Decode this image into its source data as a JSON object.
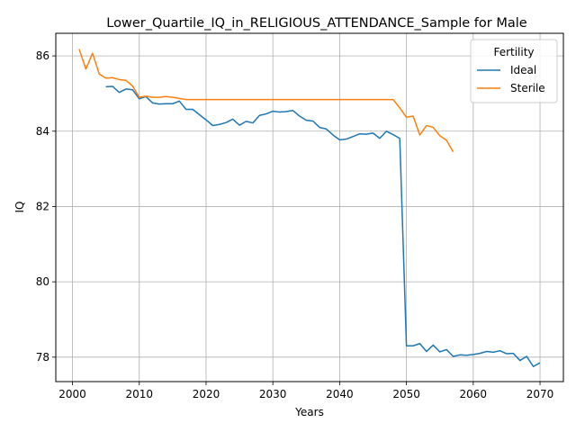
{
  "chart_data": {
    "type": "line",
    "title": "Lower_Quartile_IQ_in_RELIGIOUS_ATTENDANCE_Sample for Male",
    "xlabel": "Years",
    "ylabel": "IQ",
    "xlim": [
      1997.5,
      2073.5
    ],
    "ylim": [
      77.35,
      86.6
    ],
    "xticks": [
      2000,
      2010,
      2020,
      2030,
      2040,
      2050,
      2060,
      2070
    ],
    "yticks": [
      78,
      80,
      82,
      84,
      86
    ],
    "grid": true,
    "legend": {
      "title": "Fertility",
      "placement": "top-right"
    },
    "series": [
      {
        "name": "Ideal",
        "color": "#1f77b4",
        "x": [
          2005,
          2006,
          2007,
          2008,
          2009,
          2010,
          2011,
          2012,
          2013,
          2014,
          2015,
          2016,
          2017,
          2018,
          2019,
          2020,
          2021,
          2022,
          2023,
          2024,
          2025,
          2026,
          2027,
          2028,
          2029,
          2030,
          2031,
          2032,
          2033,
          2034,
          2035,
          2036,
          2037,
          2038,
          2039,
          2040,
          2041,
          2042,
          2043,
          2044,
          2045,
          2046,
          2047,
          2048,
          2049,
          2050,
          2051,
          2052,
          2053,
          2054,
          2055,
          2056,
          2057,
          2058,
          2059,
          2060,
          2061,
          2062,
          2063,
          2064,
          2065,
          2066,
          2067,
          2068,
          2069,
          2070
        ],
        "values": [
          85.18,
          85.19,
          85.03,
          85.12,
          85.1,
          84.86,
          84.92,
          84.75,
          84.72,
          84.73,
          84.73,
          84.8,
          84.58,
          84.58,
          84.44,
          84.3,
          84.15,
          84.18,
          84.23,
          84.32,
          84.16,
          84.26,
          84.22,
          84.42,
          84.46,
          84.53,
          84.51,
          84.52,
          84.55,
          84.4,
          84.29,
          84.27,
          84.1,
          84.06,
          83.9,
          83.77,
          83.79,
          83.86,
          83.93,
          83.92,
          83.95,
          83.81,
          84.0,
          83.91,
          83.81,
          78.3,
          78.3,
          78.36,
          78.15,
          78.32,
          78.14,
          78.2,
          78.02,
          78.06,
          78.05,
          78.07,
          78.1,
          78.15,
          78.13,
          78.17,
          78.09,
          78.1,
          77.91,
          78.02,
          77.75,
          77.85
        ]
      },
      {
        "name": "Sterile",
        "color": "#ff7f0e",
        "x": [
          2001,
          2002,
          2003,
          2004,
          2005,
          2006,
          2007,
          2008,
          2009,
          2010,
          2011,
          2012,
          2013,
          2014,
          2015,
          2016,
          2017,
          2018,
          2019,
          2020,
          2021,
          2022,
          2023,
          2024,
          2025,
          2026,
          2027,
          2028,
          2029,
          2030,
          2031,
          2032,
          2033,
          2034,
          2035,
          2036,
          2037,
          2038,
          2039,
          2040,
          2041,
          2042,
          2043,
          2044,
          2045,
          2046,
          2047,
          2048,
          2049,
          2050,
          2051,
          2052,
          2053,
          2054,
          2055,
          2056,
          2057
        ],
        "values": [
          86.18,
          85.65,
          86.07,
          85.52,
          85.41,
          85.42,
          85.37,
          85.35,
          85.2,
          84.9,
          84.93,
          84.9,
          84.9,
          84.92,
          84.9,
          84.87,
          84.84,
          84.84,
          84.84,
          84.84,
          84.84,
          84.84,
          84.84,
          84.84,
          84.84,
          84.84,
          84.84,
          84.84,
          84.84,
          84.84,
          84.84,
          84.84,
          84.84,
          84.84,
          84.84,
          84.84,
          84.84,
          84.84,
          84.84,
          84.84,
          84.84,
          84.84,
          84.84,
          84.84,
          84.84,
          84.84,
          84.84,
          84.84,
          84.62,
          84.37,
          84.4,
          83.9,
          84.15,
          84.1,
          83.88,
          83.76,
          83.45
        ]
      }
    ]
  }
}
